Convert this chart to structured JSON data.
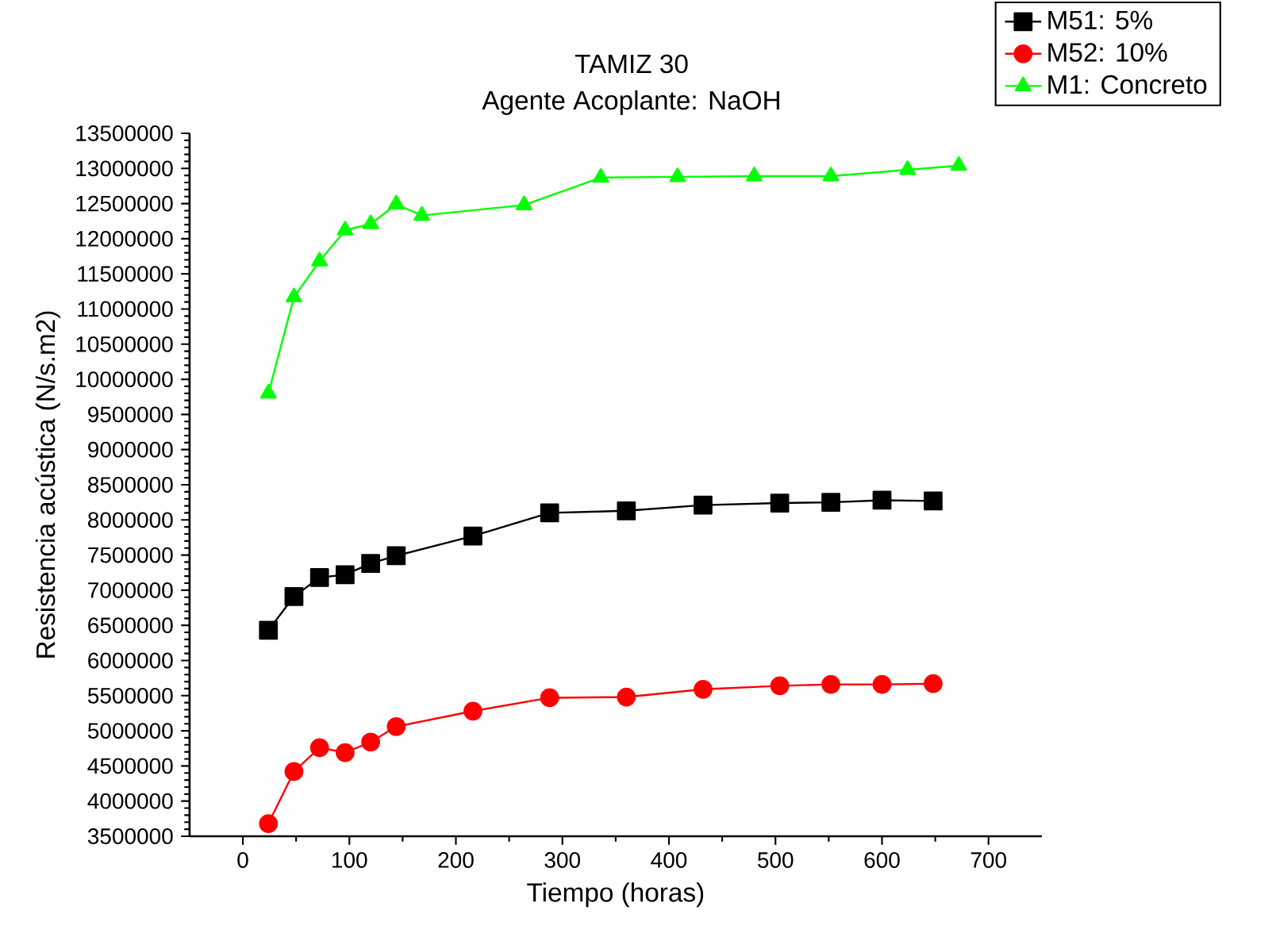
{
  "chart_data": {
    "type": "line",
    "title": "TAMIZ 30",
    "subtitle": "Agente Acoplante: NaOH",
    "xlabel": "Tiempo (horas)",
    "ylabel": "Resistencia acústica (N/s.m2)",
    "xlim": [
      -50,
      750
    ],
    "xticks": [
      0,
      100,
      200,
      300,
      400,
      500,
      600,
      700
    ],
    "ylim": [
      3500000,
      13500000
    ],
    "yticks": [
      3500000,
      4000000,
      4500000,
      5000000,
      5500000,
      6000000,
      6500000,
      7000000,
      7500000,
      8000000,
      8500000,
      9000000,
      9500000,
      10000000,
      10500000,
      11000000,
      11500000,
      12000000,
      12500000,
      13000000,
      13500000
    ],
    "grid": false,
    "legend": "top right",
    "line_style": "solid",
    "series": [
      {
        "name": "M51: 5%",
        "color": "#000000",
        "marker": "square",
        "x": [
          24,
          48,
          72,
          96,
          120,
          144,
          216,
          288,
          360,
          432,
          504,
          552,
          600,
          648
        ],
        "values": [
          6430000,
          6910000,
          7180000,
          7220000,
          7380000,
          7490000,
          7770000,
          8100000,
          8130000,
          8210000,
          8240000,
          8250000,
          8280000,
          8270000
        ]
      },
      {
        "name": "M52: 10%",
        "color": "#ff0000",
        "marker": "circle",
        "x": [
          24,
          48,
          72,
          96,
          120,
          144,
          216,
          288,
          360,
          432,
          504,
          552,
          600,
          648
        ],
        "values": [
          3680000,
          4420000,
          4760000,
          4690000,
          4840000,
          5060000,
          5280000,
          5470000,
          5480000,
          5590000,
          5640000,
          5660000,
          5660000,
          5670000
        ]
      },
      {
        "name": "M1: Concreto",
        "color": "#00ff00",
        "marker": "triangle",
        "x": [
          24,
          48,
          72,
          96,
          120,
          144,
          168,
          264,
          336,
          408,
          480,
          552,
          624,
          672
        ],
        "values": [
          9800000,
          11170000,
          11680000,
          12120000,
          12210000,
          12490000,
          12330000,
          12480000,
          12870000,
          12880000,
          12890000,
          12890000,
          12980000,
          13040000
        ]
      }
    ]
  }
}
